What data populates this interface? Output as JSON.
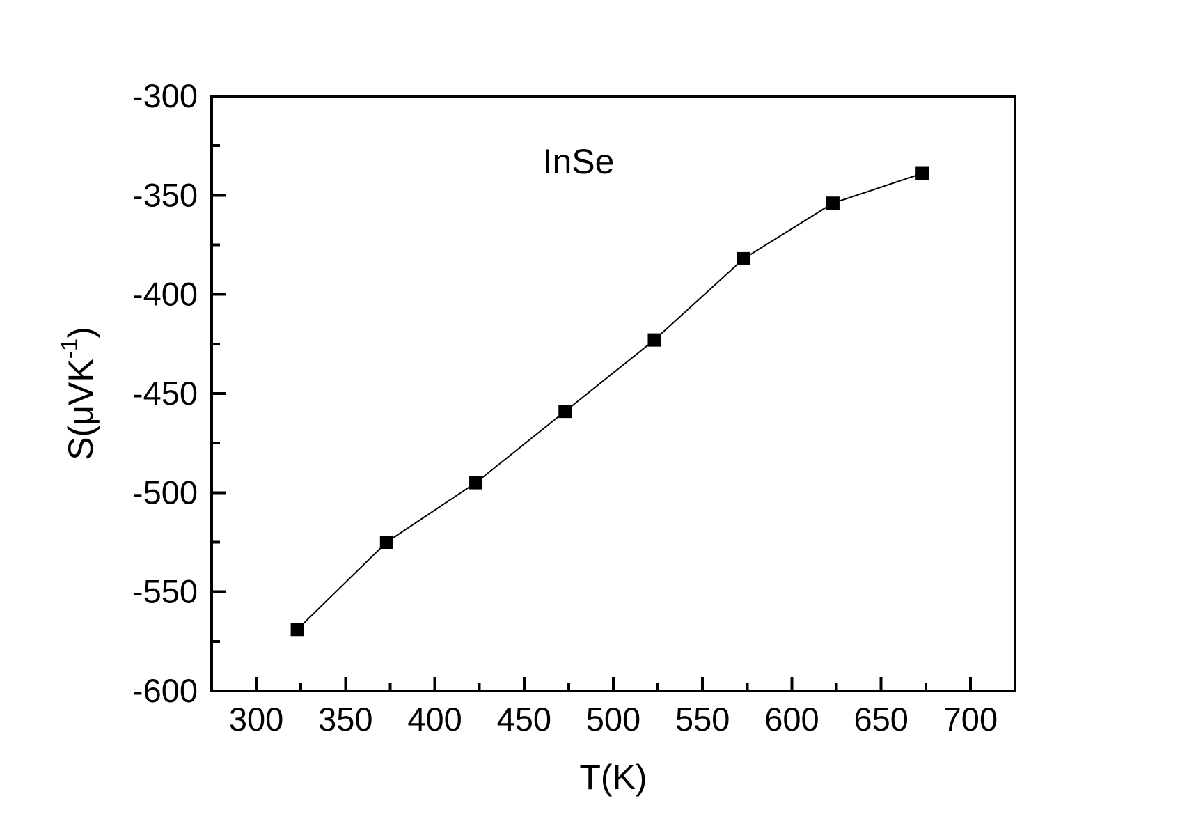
{
  "figure": {
    "background_color": "#ffffff",
    "foreground_color": "#000000"
  },
  "chart_data": {
    "type": "line",
    "title": "InSe",
    "xlabel": "T(K)",
    "ylabel": {
      "base": "S(μVK",
      "sup": "-1",
      "end": ")"
    },
    "ylabel_flat": "S(μVK⁻¹)",
    "series": [
      {
        "x": [
          323,
          373,
          423,
          473,
          523,
          573,
          623,
          673
        ],
        "y": [
          -569,
          -525,
          -495,
          -459,
          -423,
          -382,
          -354,
          -339
        ],
        "marker": "filled-square",
        "marker_size": 19,
        "line_width": 2,
        "color": "#000000"
      }
    ],
    "xlim": [
      275,
      725
    ],
    "ylim": [
      -600,
      -300
    ],
    "x_major_ticks": [
      300,
      350,
      400,
      450,
      500,
      550,
      600,
      650,
      700
    ],
    "x_minor_ticks": [
      325,
      375,
      425,
      475,
      525,
      575,
      625,
      675
    ],
    "y_major_ticks": [
      -300,
      -350,
      -400,
      -450,
      -500,
      -550,
      -600
    ],
    "y_minor_ticks": [
      -325,
      -375,
      -425,
      -475,
      -525,
      -575
    ],
    "grid": false,
    "legend": "none",
    "tick_direction": "in",
    "axis_color": "#000000",
    "background": "#ffffff"
  }
}
